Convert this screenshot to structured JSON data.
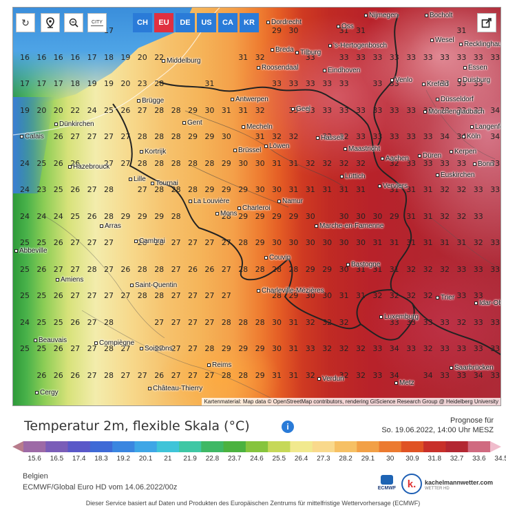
{
  "toolbar": {
    "reload_icon": "reload-icon",
    "locate_icon": "location-pin-icon",
    "zoom_icon": "zoom-out-icon",
    "city_toggle_label": "CITY",
    "share_icon": "share-icon",
    "regions": [
      {
        "label": "CH",
        "active": false
      },
      {
        "label": "EU",
        "active": true
      },
      {
        "label": "DE",
        "active": false
      },
      {
        "label": "US",
        "active": false
      },
      {
        "label": "CA",
        "active": false
      },
      {
        "label": "KR",
        "active": false
      }
    ]
  },
  "map": {
    "attribution": "Kartenmaterial: Map data © OpenStreetMap contributors, rendering GIScience Research Group @ Heidelberg University",
    "temperature_rows": [
      [
        "",
        "",
        "",
        "",
        "",
        "17",
        "",
        "",
        "",
        "",
        "",
        "",
        "",
        "",
        "",
        "29",
        "30",
        "",
        "",
        "31",
        "31",
        "",
        "",
        "",
        "",
        "",
        "31",
        "",
        ""
      ],
      [
        "16",
        "16",
        "16",
        "16",
        "17",
        "18",
        "19",
        "20",
        "22",
        "",
        "",
        "",
        "",
        "31",
        "32",
        "",
        "",
        "33",
        "",
        "33",
        "33",
        "33",
        "33",
        "33",
        "33",
        "33",
        "33",
        "33",
        "33"
      ],
      [
        "17",
        "17",
        "17",
        "18",
        "19",
        "19",
        "20",
        "23",
        "28",
        "",
        "",
        "31",
        "",
        "",
        "",
        "33",
        "33",
        "33",
        "33",
        "33",
        "",
        "33",
        "33",
        "",
        "",
        "33",
        "33",
        "33",
        ""
      ],
      [
        "19",
        "20",
        "20",
        "22",
        "24",
        "25",
        "26",
        "27",
        "28",
        "28",
        "29",
        "30",
        "31",
        "31",
        "32",
        "",
        "33",
        "33",
        "33",
        "33",
        "33",
        "33",
        "33",
        "33",
        "33",
        "33",
        "33",
        "33",
        "34"
      ],
      [
        "",
        "",
        "26",
        "27",
        "27",
        "27",
        "27",
        "28",
        "28",
        "28",
        "29",
        "29",
        "30",
        "",
        "31",
        "32",
        "32",
        "",
        "32",
        "32",
        "33",
        "33",
        "33",
        "33",
        "33",
        "34",
        "34",
        "",
        "34"
      ],
      [
        "24",
        "25",
        "26",
        "26",
        "",
        "27",
        "27",
        "28",
        "28",
        "28",
        "28",
        "28",
        "29",
        "30",
        "30",
        "31",
        "31",
        "32",
        "32",
        "32",
        "32",
        "",
        "32",
        "33",
        "33",
        "33",
        "33",
        "",
        "33"
      ],
      [
        "24",
        "23",
        "25",
        "26",
        "27",
        "28",
        "",
        "27",
        "28",
        "28",
        "28",
        "29",
        "29",
        "29",
        "30",
        "30",
        "31",
        "31",
        "31",
        "31",
        "31",
        "",
        "31",
        "31",
        "31",
        "32",
        "32",
        "33",
        "33"
      ],
      [
        "24",
        "24",
        "24",
        "25",
        "26",
        "28",
        "29",
        "29",
        "29",
        "28",
        "",
        "",
        "28",
        "29",
        "29",
        "29",
        "29",
        "30",
        "",
        "30",
        "30",
        "30",
        "29",
        "31",
        "31",
        "32",
        "32",
        "33",
        ""
      ],
      [
        "25",
        "25",
        "26",
        "27",
        "27",
        "27",
        "",
        "28",
        "28",
        "27",
        "27",
        "27",
        "27",
        "28",
        "29",
        "30",
        "30",
        "30",
        "30",
        "30",
        "30",
        "31",
        "31",
        "31",
        "31",
        "31",
        "31",
        "32",
        "33"
      ],
      [
        "25",
        "26",
        "27",
        "27",
        "28",
        "27",
        "26",
        "28",
        "28",
        "27",
        "26",
        "26",
        "27",
        "28",
        "28",
        "28",
        "28",
        "29",
        "29",
        "30",
        "31",
        "31",
        "31",
        "32",
        "32",
        "32",
        "33",
        "33",
        "33"
      ],
      [
        "25",
        "25",
        "26",
        "27",
        "27",
        "27",
        "27",
        "28",
        "28",
        "27",
        "27",
        "27",
        "27",
        "",
        "",
        "28",
        "29",
        "30",
        "30",
        "31",
        "31",
        "32",
        "32",
        "32",
        "32",
        "",
        "33",
        "33",
        ""
      ],
      [
        "24",
        "25",
        "25",
        "26",
        "27",
        "28",
        "",
        "",
        "27",
        "27",
        "27",
        "27",
        "28",
        "28",
        "28",
        "30",
        "31",
        "32",
        "32",
        "32",
        "",
        "",
        "33",
        "33",
        "33",
        "33",
        "32",
        "33",
        "33"
      ],
      [
        "25",
        "25",
        "26",
        "27",
        "27",
        "28",
        "27",
        "",
        "27",
        "27",
        "27",
        "28",
        "29",
        "29",
        "29",
        "30",
        "31",
        "33",
        "32",
        "32",
        "32",
        "33",
        "34",
        "33",
        "32",
        "33",
        "33",
        "33",
        "33"
      ],
      [
        "",
        "26",
        "26",
        "26",
        "27",
        "28",
        "27",
        "27",
        "26",
        "27",
        "27",
        "27",
        "28",
        "28",
        "29",
        "31",
        "31",
        "32",
        "",
        "32",
        "32",
        "33",
        "34",
        "",
        "34",
        "33",
        "33",
        "34",
        "33"
      ]
    ],
    "cities": [
      {
        "name": "Dordrecht"
      },
      {
        "name": "Oss"
      },
      {
        "name": "Nijmegen"
      },
      {
        "name": "Bocholt"
      },
      {
        "name": "Wesel"
      },
      {
        "name": "Recklinghausen"
      },
      {
        "name": "Middelburg"
      },
      {
        "name": "Breda"
      },
      {
        "name": "Tilburg"
      },
      {
        "name": "'s-Hertogenbosch"
      },
      {
        "name": "Roosendaal"
      },
      {
        "name": "Eindhoven"
      },
      {
        "name": "Essen"
      },
      {
        "name": "Venlo"
      },
      {
        "name": "Krefeld"
      },
      {
        "name": "Duisburg"
      },
      {
        "name": "Antwerpen"
      },
      {
        "name": "Brügge"
      },
      {
        "name": "Geel"
      },
      {
        "name": "Düsseldorf"
      },
      {
        "name": "Mönchengladbach"
      },
      {
        "name": "Gent"
      },
      {
        "name": "Dünkirchen"
      },
      {
        "name": "Mecheln"
      },
      {
        "name": "Langenfeld"
      },
      {
        "name": "Calais"
      },
      {
        "name": "Hasselt"
      },
      {
        "name": "Köln"
      },
      {
        "name": "Löwen"
      },
      {
        "name": "Brüssel"
      },
      {
        "name": "Maastricht"
      },
      {
        "name": "Kortrijk"
      },
      {
        "name": "Düren"
      },
      {
        "name": "Kerpen"
      },
      {
        "name": "Aachen"
      },
      {
        "name": "Bonn"
      },
      {
        "name": "Hazebrouck"
      },
      {
        "name": "Lille"
      },
      {
        "name": "Lüttich"
      },
      {
        "name": "Euskirchen"
      },
      {
        "name": "Tournai"
      },
      {
        "name": "Verviers"
      },
      {
        "name": "La Louvière"
      },
      {
        "name": "Namur"
      },
      {
        "name": "Charleroi"
      },
      {
        "name": "Mons"
      },
      {
        "name": "Arras"
      },
      {
        "name": "Marche-en-Famenne"
      },
      {
        "name": "Cambrai"
      },
      {
        "name": "Abbeville"
      },
      {
        "name": "Couvin"
      },
      {
        "name": "Bastogne"
      },
      {
        "name": "Amiens"
      },
      {
        "name": "Saint-Quentin"
      },
      {
        "name": "Charleville-Mézières"
      },
      {
        "name": "Trier"
      },
      {
        "name": "Idar-Ob"
      },
      {
        "name": "Luxemburg"
      },
      {
        "name": "Beauvais"
      },
      {
        "name": "Compiègne"
      },
      {
        "name": "Soissons"
      },
      {
        "name": "Saarbrücken"
      },
      {
        "name": "Reims"
      },
      {
        "name": "Verdun"
      },
      {
        "name": "Metz"
      },
      {
        "name": "Château-Thierry"
      },
      {
        "name": "Cergy"
      }
    ]
  },
  "legend": {
    "title": "Temperatur 2m, flexible Skala (°C)",
    "info_icon": "info-icon",
    "forecast_label": "Prognose für",
    "forecast_time": "So. 19.06.2022, 14:00 Uhr MESZ",
    "scale_values": [
      "15.6",
      "16.5",
      "17.4",
      "18.3",
      "19.2",
      "20.1",
      "21",
      "21.9",
      "22.8",
      "23.7",
      "24.6",
      "25.5",
      "26.4",
      "27.3",
      "28.2",
      "29.1",
      "30",
      "30.9",
      "31.8",
      "32.7",
      "33.6",
      "34.5"
    ],
    "scale_colors": [
      "#b87c8c",
      "#9d6aa6",
      "#7a5db8",
      "#5a58c8",
      "#3e6ad6",
      "#3a86e0",
      "#3ea6e6",
      "#3fc4d8",
      "#3ec7a4",
      "#3eb865",
      "#4bb23f",
      "#86c43d",
      "#c6d858",
      "#f1e98e",
      "#f9d98c",
      "#f6c064",
      "#f2a046",
      "#ec7a30",
      "#e05324",
      "#c8302a",
      "#b32732",
      "#d06a80",
      "#f0bccc"
    ],
    "region": "Belgien",
    "model_run": "ECMWF/Global Euro HD vom 14.06.2022/00z",
    "footer": "Dieser Service basiert auf Daten und Produkten des Europäischen Zentrums für mittelfristige Wettervorhersage (ECMWF)",
    "ecmwf_logo_text": "ECMWF",
    "provider_logo_letter": "k.",
    "provider_name": "kachelmannwetter.com",
    "provider_subtitle": "WETTER HD"
  }
}
